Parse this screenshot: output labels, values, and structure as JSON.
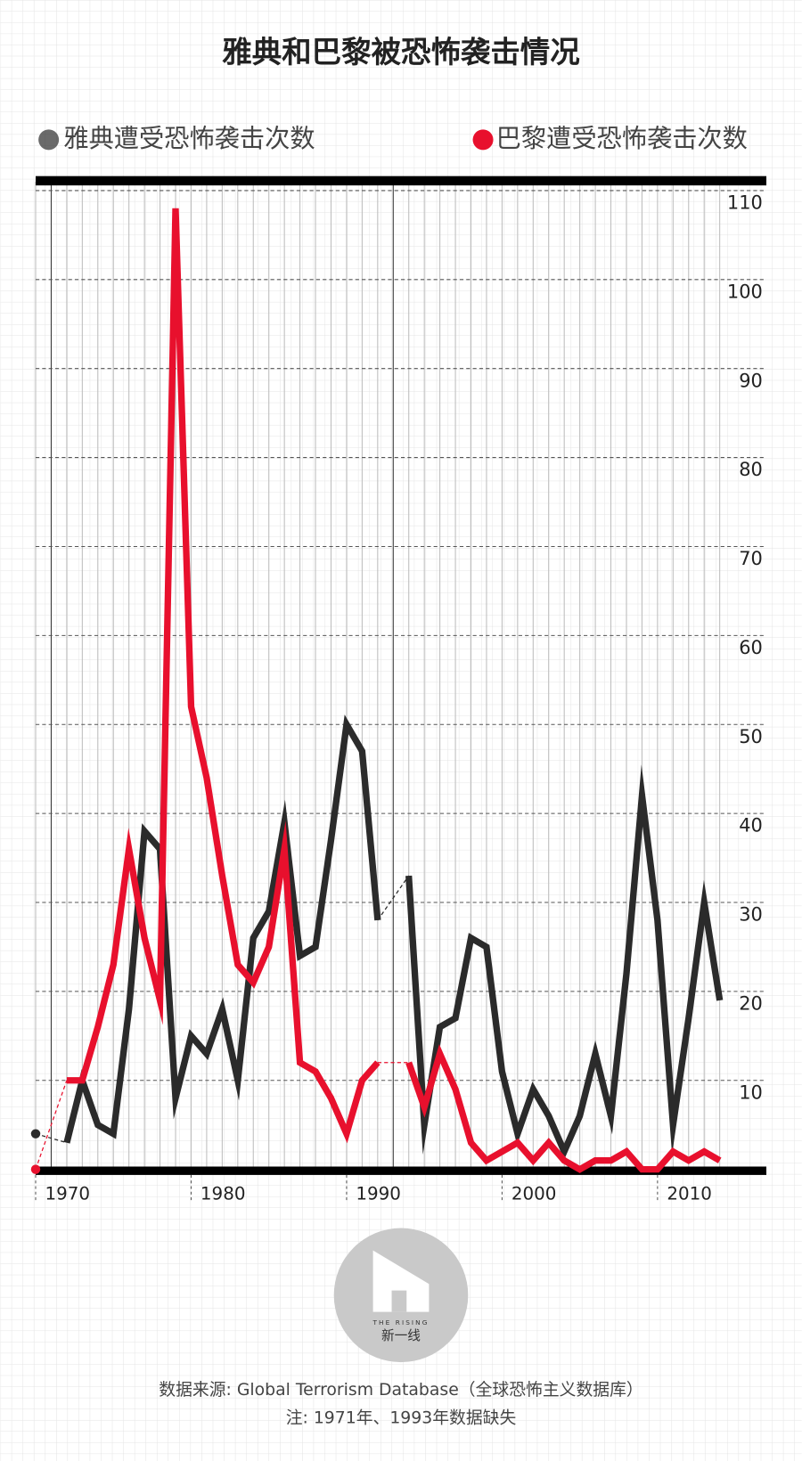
{
  "chart_data": {
    "type": "line",
    "title": "雅典和巴黎被恐怖袭击情况",
    "x": [
      1970,
      1971,
      1972,
      1973,
      1974,
      1975,
      1976,
      1977,
      1978,
      1979,
      1980,
      1981,
      1982,
      1983,
      1984,
      1985,
      1986,
      1987,
      1988,
      1989,
      1990,
      1991,
      1992,
      1993,
      1994,
      1995,
      1996,
      1997,
      1998,
      1999,
      2000,
      2001,
      2002,
      2003,
      2004,
      2005,
      2006,
      2007,
      2008,
      2009,
      2010,
      2011,
      2012,
      2013,
      2014
    ],
    "series": [
      {
        "name": "雅典遭受恐怖袭击次数",
        "color": "#2b2b2b",
        "values": [
          4,
          null,
          3,
          10,
          5,
          4,
          18,
          38,
          36,
          8,
          15,
          13,
          18,
          10,
          26,
          29,
          39,
          24,
          25,
          37,
          50,
          47,
          28,
          null,
          33,
          5,
          16,
          17,
          26,
          25,
          11,
          4,
          9,
          6,
          2,
          6,
          13,
          6,
          22,
          42,
          28,
          5,
          17,
          30,
          19
        ]
      },
      {
        "name": "巴黎遭受恐怖袭击次数",
        "color": "#e8102d",
        "values": [
          0,
          null,
          10,
          10,
          16,
          23,
          36,
          26,
          19,
          108,
          52,
          44,
          33,
          23,
          21,
          25,
          36,
          12,
          11,
          8,
          4,
          10,
          12,
          null,
          12,
          7,
          13,
          9,
          3,
          1,
          2,
          3,
          1,
          3,
          1,
          0,
          1,
          1,
          2,
          0,
          0,
          2,
          1,
          2,
          1
        ]
      }
    ],
    "xlim": [
      1970,
      2017
    ],
    "xticks": [
      1970,
      1980,
      1990,
      2000,
      2010
    ],
    "ylim": [
      0,
      111
    ],
    "yticks": [
      10,
      20,
      30,
      40,
      50,
      60,
      70,
      80,
      90,
      100,
      110
    ],
    "grid": true
  },
  "logo": {
    "brand": "THE RISING",
    "name": "新一线"
  },
  "footer": {
    "source": "数据来源: Global Terrorism Database（全球恐怖主义数据库）",
    "note": "注: 1971年、1993年数据缺失"
  }
}
